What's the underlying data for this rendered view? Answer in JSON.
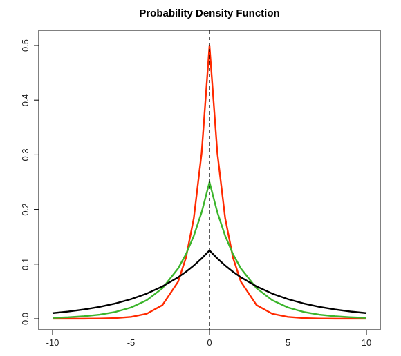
{
  "chart_data": {
    "type": "line",
    "title": "Probability Density Function",
    "xlabel": "",
    "ylabel": "",
    "xlim": [
      -10,
      10
    ],
    "ylim": [
      0,
      0.5
    ],
    "x_ticks": [
      -10,
      -5,
      0,
      5,
      10
    ],
    "y_ticks": [
      0.0,
      0.1,
      0.2,
      0.3,
      0.4,
      0.5
    ],
    "x_tick_labels": [
      "-10",
      "-5",
      "0",
      "5",
      "10"
    ],
    "y_tick_labels": [
      "0.0",
      "0.1",
      "0.2",
      "0.3",
      "0.4",
      "0.5"
    ],
    "grid": false,
    "legend": null,
    "reference_line": {
      "x": 0,
      "style": "dashed",
      "color": "#000000"
    },
    "x": [
      -10,
      -9,
      -8,
      -7,
      -6,
      -5,
      -4,
      -3,
      -2,
      -1.5,
      -1,
      -0.5,
      0,
      0.5,
      1,
      1.5,
      2,
      3,
      4,
      5,
      6,
      7,
      8,
      9,
      10
    ],
    "series": [
      {
        "color": "#ff2a00",
        "values": [
          2e-05,
          6e-05,
          0.00017,
          0.00046,
          0.00124,
          0.00337,
          0.00916,
          0.0249,
          0.0677,
          0.1116,
          0.1839,
          0.3033,
          0.5,
          0.3033,
          0.1839,
          0.1116,
          0.0677,
          0.0249,
          0.00916,
          0.00337,
          0.00124,
          0.00046,
          0.00017,
          6e-05,
          2e-05
        ]
      },
      {
        "color": "#3cb52c",
        "values": [
          0.00168,
          0.00278,
          0.00458,
          0.00755,
          0.01245,
          0.02052,
          0.03383,
          0.05578,
          0.09197,
          0.1181,
          0.1516,
          0.1947,
          0.25,
          0.1947,
          0.1516,
          0.1181,
          0.09197,
          0.05578,
          0.03383,
          0.02052,
          0.01245,
          0.00755,
          0.00458,
          0.00278,
          0.00168
        ]
      },
      {
        "color": "#000000",
        "values": [
          0.01026,
          0.01317,
          0.01692,
          0.02173,
          0.0279,
          0.03582,
          0.04599,
          0.05906,
          0.07582,
          0.08592,
          0.09735,
          0.1103,
          0.125,
          0.1103,
          0.09735,
          0.08592,
          0.07582,
          0.05906,
          0.04599,
          0.03582,
          0.0279,
          0.02173,
          0.01692,
          0.01317,
          0.01026
        ]
      }
    ]
  }
}
